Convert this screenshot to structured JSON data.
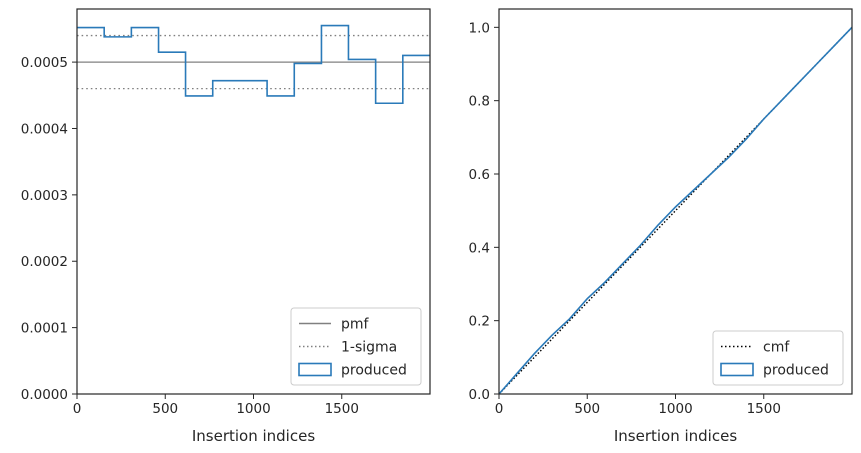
{
  "chart_data": [
    {
      "type": "histogram-step",
      "xlabel": "Insertion indices",
      "ylabel": "",
      "xlim": [
        0,
        2000
      ],
      "ylim": [
        0,
        0.00058
      ],
      "x_ticks": [
        0,
        500,
        1000,
        1500
      ],
      "x_tick_labels": [
        "0",
        "500",
        "1000",
        "1500"
      ],
      "y_ticks": [
        0,
        0.0001,
        0.0002,
        0.0003,
        0.0004,
        0.0005
      ],
      "y_tick_labels": [
        "0.0000",
        "0.0001",
        "0.0002",
        "0.0003",
        "0.0004",
        "0.0005"
      ],
      "grid": false,
      "legend_position": "lower-right",
      "reference_lines": [
        {
          "name": "pmf",
          "value": 0.0005,
          "style": "solid",
          "color": "#808080"
        },
        {
          "name": "1-sigma",
          "value": 0.00054,
          "style": "dotted",
          "color": "#808080"
        },
        {
          "name": "1-sigma",
          "value": 0.00046,
          "style": "dotted",
          "color": "#808080"
        }
      ],
      "series": [
        {
          "name": "produced",
          "color": "#2a7ab9",
          "bin_edges": [
            0,
            154,
            308,
            462,
            615,
            769,
            923,
            1077,
            1231,
            1385,
            1538,
            1692,
            1846,
            2000
          ],
          "values": [
            0.000552,
            0.000538,
            0.000552,
            0.000515,
            0.000449,
            0.000472,
            0.000472,
            0.000449,
            0.000498,
            0.000555,
            0.000504,
            0.000438,
            0.00051
          ]
        }
      ],
      "legend": [
        "pmf",
        "1-sigma",
        "produced"
      ]
    },
    {
      "type": "line",
      "xlabel": "Insertion indices",
      "ylabel": "",
      "xlim": [
        0,
        2000
      ],
      "ylim": [
        0,
        1.05
      ],
      "x_ticks": [
        0,
        500,
        1000,
        1500
      ],
      "x_tick_labels": [
        "0",
        "500",
        "1000",
        "1500"
      ],
      "y_ticks": [
        0,
        0.2,
        0.4,
        0.6,
        0.8,
        1.0
      ],
      "y_tick_labels": [
        "0.0",
        "0.2",
        "0.4",
        "0.6",
        "0.8",
        "1.0"
      ],
      "grid": false,
      "legend_position": "lower-right",
      "series": [
        {
          "name": "cmf",
          "style": "dotted",
          "color": "#000000",
          "x": [
            0,
            2000
          ],
          "y": [
            0,
            1.0
          ]
        },
        {
          "name": "produced",
          "style": "solid",
          "color": "#2a7ab9",
          "x": [
            0,
            100,
            200,
            300,
            400,
            500,
            600,
            700,
            800,
            900,
            1000,
            1100,
            1200,
            1300,
            1400,
            1500,
            1600,
            1700,
            1800,
            1900,
            2000
          ],
          "y": [
            0,
            0.055,
            0.11,
            0.16,
            0.205,
            0.26,
            0.305,
            0.355,
            0.405,
            0.46,
            0.51,
            0.555,
            0.6,
            0.645,
            0.695,
            0.75,
            0.8,
            0.85,
            0.9,
            0.95,
            1.0
          ]
        }
      ],
      "legend": [
        "cmf",
        "produced"
      ]
    }
  ]
}
